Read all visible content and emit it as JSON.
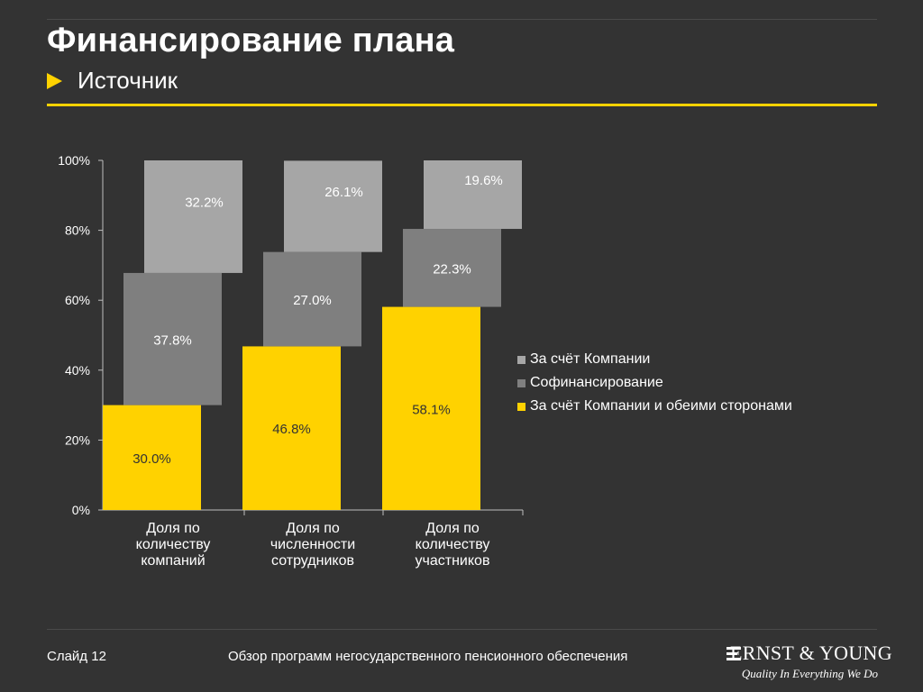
{
  "header": {
    "title": "Финансирование плана",
    "subtitle": "Источник"
  },
  "colors": {
    "background": "#333333",
    "accent": "#ffd200",
    "series_company": "#a6a6a6",
    "series_cofinancing": "#7f7f7f",
    "series_both": "#ffd200"
  },
  "chart_data": {
    "type": "bar",
    "stacked": true,
    "categories": [
      [
        "Доля по",
        "количеству",
        "компаний"
      ],
      [
        "Доля по",
        "численности",
        "сотрудников"
      ],
      [
        "Доля по",
        "количеству",
        "участников"
      ]
    ],
    "series": [
      {
        "name": "За счёт Компании и обеими сторонами",
        "values": [
          30.0,
          46.8,
          58.1
        ],
        "labels": [
          "30.0%",
          "46.8%",
          "58.1%"
        ],
        "color": "#ffd200"
      },
      {
        "name": "Софинансирование",
        "values": [
          37.8,
          27.0,
          22.3
        ],
        "labels": [
          "37.8%",
          "27.0%",
          "22.3%"
        ],
        "color": "#7f7f7f"
      },
      {
        "name": "За счёт Компании",
        "values": [
          32.2,
          26.1,
          19.6
        ],
        "labels": [
          "32.2%",
          "26.1%",
          "19.6%"
        ],
        "color": "#a6a6a6"
      }
    ],
    "yticks": [
      "0%",
      "20%",
      "40%",
      "60%",
      "80%",
      "100%"
    ],
    "ylim": [
      0,
      100
    ],
    "legend": [
      {
        "label": "За счёт Компании",
        "color": "#a6a6a6"
      },
      {
        "label": "Софинансирование",
        "color": "#7f7f7f"
      },
      {
        "label": "За счёт Компании и обеими сторонами",
        "color": "#ffd200"
      }
    ],
    "legend_position": "right",
    "grid": false
  },
  "footer": {
    "slide": "Слайд 12",
    "text": "Обзор программ негосударственного пенсионного обеспечения",
    "logo_name": "ERNST & YOUNG",
    "logo_tagline": "Quality In Everything We Do"
  }
}
